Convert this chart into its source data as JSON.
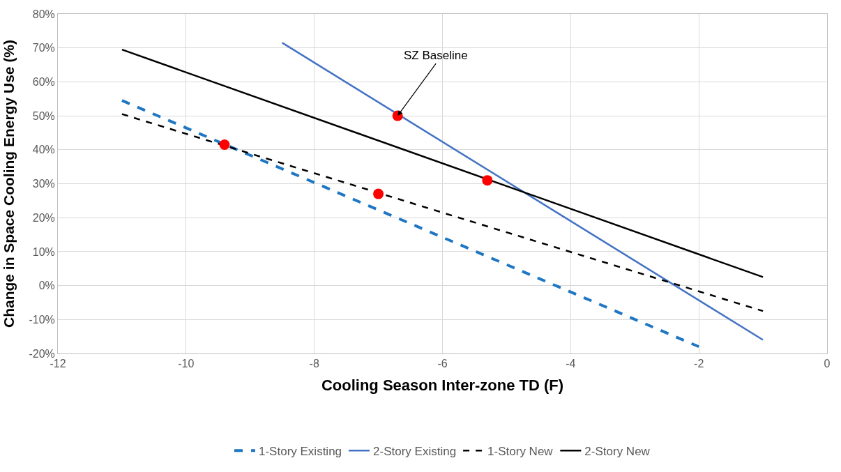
{
  "chart_data": {
    "type": "line",
    "xlabel": "Cooling Season Inter-zone TD (F)",
    "ylabel": "Change in Space Cooling Energy Use (%)",
    "xlim": [
      -12,
      0
    ],
    "xticks": [
      -12,
      -10,
      -8,
      -6,
      -4,
      -2,
      0
    ],
    "ylim": [
      -20,
      80
    ],
    "yticks": [
      {
        "value": -20,
        "label": "-20%"
      },
      {
        "value": -10,
        "label": "-10%"
      },
      {
        "value": 0,
        "label": "0%"
      },
      {
        "value": 10,
        "label": "10%"
      },
      {
        "value": 20,
        "label": "20%"
      },
      {
        "value": 30,
        "label": "30%"
      },
      {
        "value": 40,
        "label": "40%"
      },
      {
        "value": 50,
        "label": "50%"
      },
      {
        "value": 60,
        "label": "60%"
      },
      {
        "value": 70,
        "label": "70%"
      },
      {
        "value": 80,
        "label": "80%"
      }
    ],
    "grid": true,
    "legend": "bottom",
    "series": [
      {
        "name": "1-Story Existing",
        "color": "#1f77c4",
        "x": [
          -11,
          -2
        ],
        "values": [
          54.5,
          -18
        ],
        "line_style": "dashed",
        "marker": "none"
      },
      {
        "name": "2-Story Existing",
        "color": "#4472c4",
        "x": [
          -8.5,
          -1
        ],
        "values": [
          71.5,
          -16
        ],
        "line_style": "solid",
        "marker": "none"
      },
      {
        "name": "1-Story New",
        "color": "#000000",
        "x": [
          -11,
          -1
        ],
        "values": [
          50.5,
          -7.5
        ],
        "line_style": "dashed",
        "marker": "none"
      },
      {
        "name": "2-Story New",
        "color": "#000000",
        "x": [
          -11,
          -1
        ],
        "values": [
          69.5,
          2.5
        ],
        "line_style": "solid",
        "marker": "none"
      },
      {
        "type": "scatter",
        "color": "#ff0000",
        "x": [
          -9.4,
          -6.7,
          -5.3,
          -7.0
        ],
        "values": [
          41.5,
          50,
          31,
          27
        ],
        "marker": "circle"
      }
    ],
    "annotations": [
      {
        "text": "SZ Baseline",
        "x": -6.7,
        "y": 50
      }
    ]
  }
}
